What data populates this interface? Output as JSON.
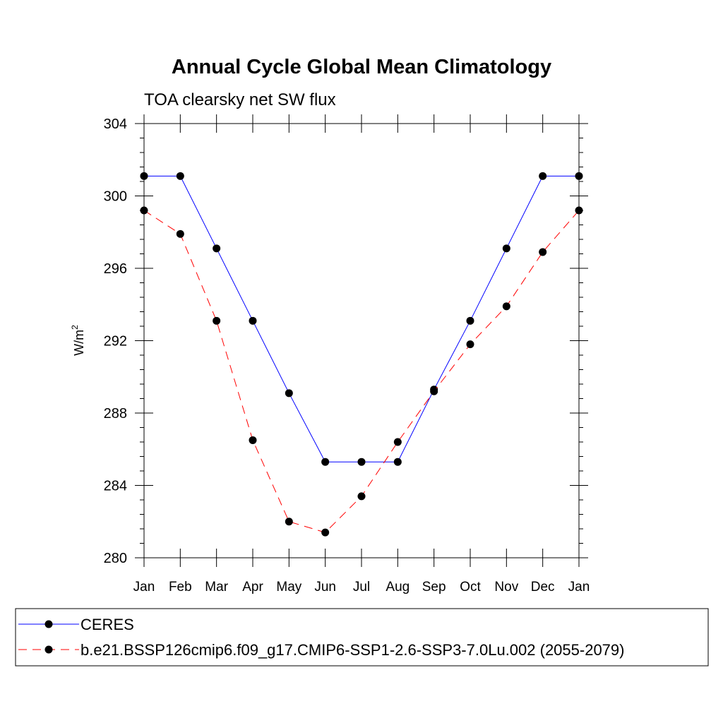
{
  "chart_data": {
    "type": "line",
    "title": "Annual Cycle Global Mean Climatology",
    "subtitle": "TOA clearsky net SW flux",
    "ylabel_base": "W/m",
    "ylabel_sup": "2",
    "xlabel": "",
    "categories": [
      "Jan",
      "Feb",
      "Mar",
      "Apr",
      "May",
      "Jun",
      "Jul",
      "Aug",
      "Sep",
      "Oct",
      "Nov",
      "Dec",
      "Jan"
    ],
    "ylim": [
      280,
      304
    ],
    "yticks": [
      280,
      284,
      288,
      292,
      296,
      300,
      304
    ],
    "grid": false,
    "legend_position": "bottom",
    "series": [
      {
        "name": "CERES",
        "color": "#0000ff",
        "line_style": "solid",
        "marker": "filled-circle",
        "values": [
          301.1,
          301.1,
          297.1,
          293.1,
          289.1,
          285.3,
          285.3,
          285.3,
          289.3,
          293.1,
          297.1,
          301.1,
          301.1
        ]
      },
      {
        "name": "b.e21.BSSP126cmip6.f09_g17.CMIP6-SSP1-2.6-SSP3-7.0Lu.002 (2055-2079)",
        "color": "#ff0000",
        "line_style": "dashed",
        "marker": "filled-circle",
        "values": [
          299.2,
          297.9,
          293.1,
          286.5,
          282.0,
          281.4,
          283.4,
          286.4,
          289.2,
          291.8,
          293.9,
          296.9,
          299.2
        ]
      }
    ]
  }
}
